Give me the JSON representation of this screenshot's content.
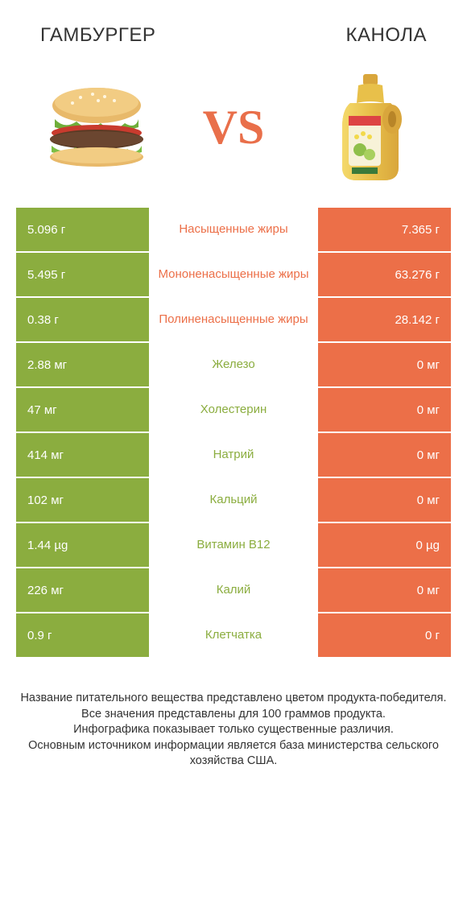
{
  "colors": {
    "green": "#8bad3f",
    "orange": "#ec6f48",
    "vs": "#e96f4a",
    "background": "#ffffff",
    "text": "#333333"
  },
  "header": {
    "left_title": "ГАМБУРГЕР",
    "right_title": "КАНОЛА",
    "vs_label": "VS"
  },
  "table": {
    "rows": [
      {
        "left": "5.096 г",
        "mid": "Насыщенные жиры",
        "right": "7.365 г",
        "winner": "right"
      },
      {
        "left": "5.495 г",
        "mid": "Мононенасыщенные жиры",
        "right": "63.276 г",
        "winner": "right"
      },
      {
        "left": "0.38 г",
        "mid": "Полиненасыщенные жиры",
        "right": "28.142 г",
        "winner": "right"
      },
      {
        "left": "2.88 мг",
        "mid": "Железо",
        "right": "0 мг",
        "winner": "left"
      },
      {
        "left": "47 мг",
        "mid": "Холестерин",
        "right": "0 мг",
        "winner": "left"
      },
      {
        "left": "414 мг",
        "mid": "Натрий",
        "right": "0 мг",
        "winner": "left"
      },
      {
        "left": "102 мг",
        "mid": "Кальций",
        "right": "0 мг",
        "winner": "left"
      },
      {
        "left": "1.44 µg",
        "mid": "Витамин B12",
        "right": "0 µg",
        "winner": "left"
      },
      {
        "left": "226 мг",
        "mid": "Калий",
        "right": "0 мг",
        "winner": "left"
      },
      {
        "left": "0.9 г",
        "mid": "Клетчатка",
        "right": "0 г",
        "winner": "left"
      }
    ]
  },
  "footer": {
    "line1": "Название питательного вещества представлено цветом продукта-победителя.",
    "line2": "Все значения представлены для 100 граммов продукта.",
    "line3": "Инфографика показывает только существенные различия.",
    "line4": "Основным источником информации является база министерства сельского хозяйства США."
  }
}
